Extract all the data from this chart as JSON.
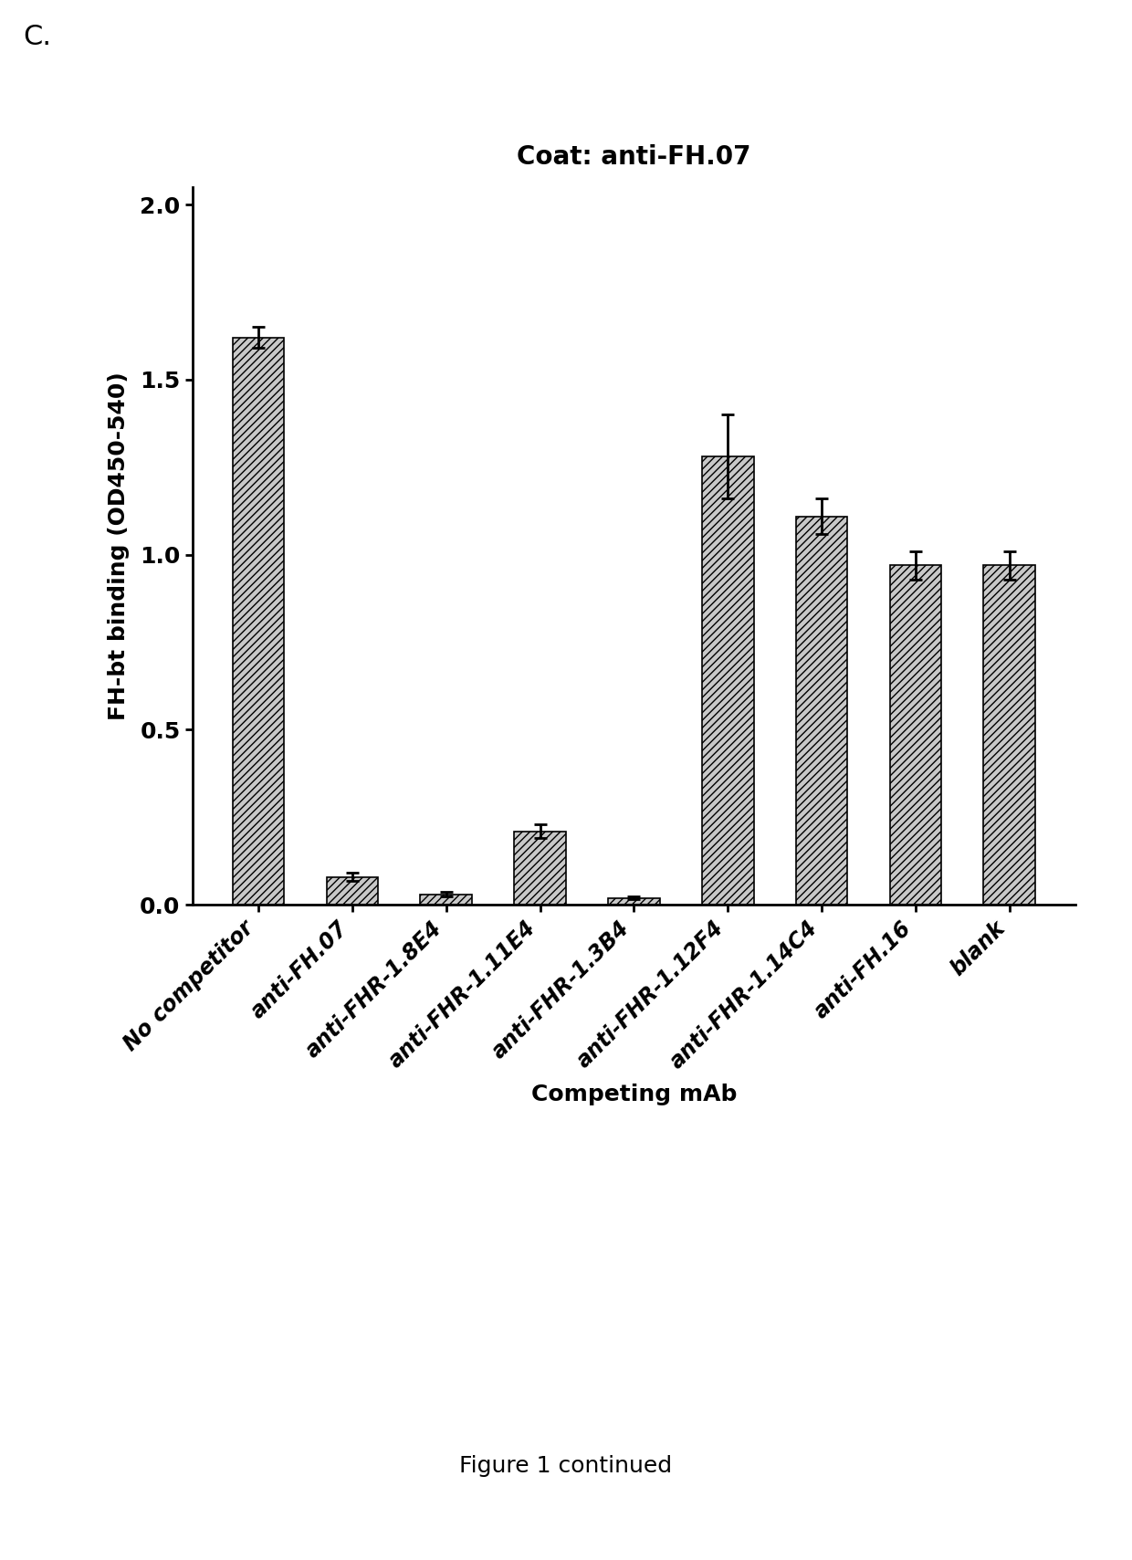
{
  "title": "Coat: anti-FH.07",
  "xlabel": "Competing mAb",
  "ylabel": "FH-bt binding (OD450-540)",
  "categories": [
    "No competitor",
    "anti-FH.07",
    "anti-FHR-1.8E4",
    "anti-FHR-1.11E4",
    "anti-FHR-1.3B4",
    "anti-FHR-1.12F4",
    "anti-FHR-1.14C4",
    "anti-FH.16",
    "blank"
  ],
  "values": [
    1.62,
    0.08,
    0.03,
    0.21,
    0.02,
    1.28,
    1.11,
    0.97,
    0.97
  ],
  "errors": [
    0.03,
    0.012,
    0.006,
    0.02,
    0.005,
    0.12,
    0.05,
    0.04,
    0.04
  ],
  "ylim": [
    0,
    2.05
  ],
  "yticks": [
    0.0,
    0.5,
    1.0,
    1.5,
    2.0
  ],
  "bar_color": "#c8c8c8",
  "hatch_pattern": "////",
  "bar_edgecolor": "#000000",
  "background_color": "#ffffff",
  "panel_label": "C.",
  "footer_text": "Figure 1 continued",
  "title_fontsize": 20,
  "axis_label_fontsize": 18,
  "tick_fontsize": 18,
  "xtick_fontsize": 17,
  "footer_fontsize": 18,
  "panel_label_fontsize": 22
}
